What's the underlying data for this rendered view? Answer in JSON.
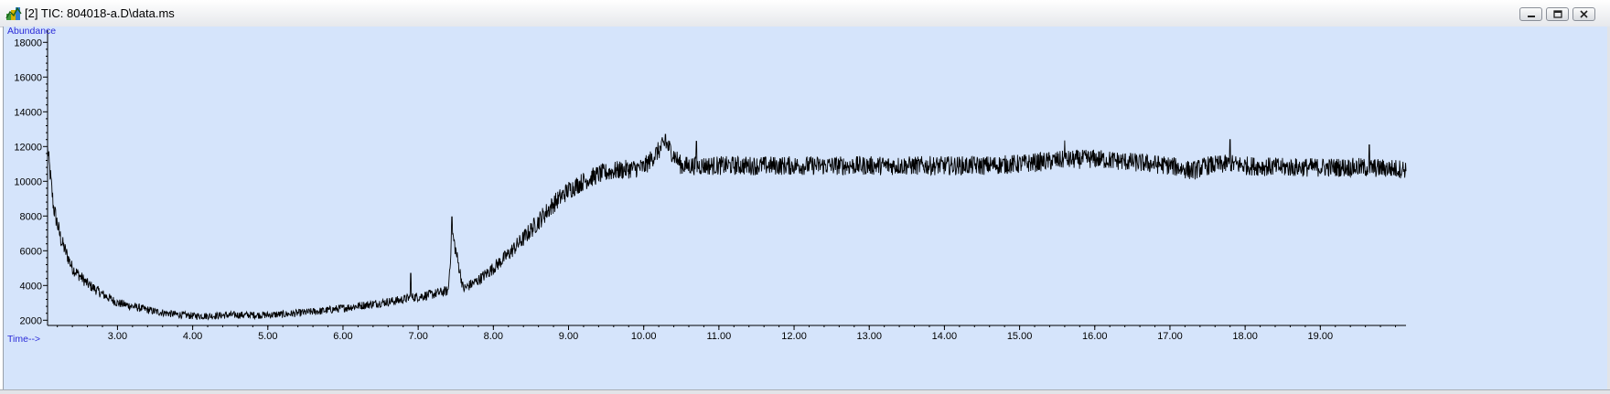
{
  "window": {
    "title": "[2] TIC: 804018-a.D\\data.ms",
    "icon": "chromatogram-app-icon",
    "buttons": [
      "minimize",
      "restore",
      "close"
    ]
  },
  "colors": {
    "plot_background": "#d5e4fb",
    "trace": "#000000",
    "axis_title_color": "#2a2ad8"
  },
  "chart_data": {
    "type": "line",
    "title": "",
    "ylabel": "Abundance",
    "xlabel": "Time-->",
    "xlim": [
      2.07,
      20.14
    ],
    "ylim": [
      1700,
      18700
    ],
    "x_ticks": [
      3.0,
      4.0,
      5.0,
      6.0,
      7.0,
      8.0,
      9.0,
      10.0,
      11.0,
      12.0,
      13.0,
      14.0,
      15.0,
      16.0,
      17.0,
      18.0,
      19.0
    ],
    "x_tick_labels": [
      "3.00",
      "4.00",
      "5.00",
      "6.00",
      "7.00",
      "8.00",
      "9.00",
      "10.00",
      "11.00",
      "12.00",
      "13.00",
      "14.00",
      "15.00",
      "16.00",
      "17.00",
      "18.00",
      "19.00"
    ],
    "y_ticks": [
      2000,
      4000,
      6000,
      8000,
      10000,
      12000,
      14000,
      16000,
      18000
    ],
    "y_tick_labels": [
      "2000",
      "4000",
      "6000",
      "8000",
      "10000",
      "12000",
      "14000",
      "16000",
      "18000"
    ],
    "grid": false,
    "series": [
      {
        "values_note_free": true,
        "x": [
          2.07,
          2.15,
          2.25,
          2.4,
          2.6,
          2.8,
          3.0,
          3.25,
          3.5,
          3.75,
          4.0,
          4.25,
          4.5,
          4.75,
          5.0,
          5.25,
          5.5,
          5.75,
          6.0,
          6.25,
          6.5,
          6.75,
          6.9,
          7.0,
          7.2,
          7.4,
          7.45,
          7.6,
          7.8,
          8.0,
          8.2,
          8.4,
          8.6,
          8.8,
          9.0,
          9.2,
          9.4,
          9.6,
          9.8,
          10.0,
          10.29,
          10.5,
          11.0,
          11.5,
          12.0,
          12.5,
          13.0,
          13.5,
          14.0,
          14.5,
          15.0,
          15.5,
          16.0,
          16.5,
          17.0,
          17.3,
          17.5,
          17.8,
          18.0,
          18.5,
          19.0,
          19.5,
          20.14
        ],
        "y": [
          11900,
          8500,
          6600,
          5000,
          4100,
          3500,
          3000,
          2750,
          2500,
          2350,
          2250,
          2250,
          2300,
          2300,
          2300,
          2350,
          2450,
          2550,
          2700,
          2850,
          3000,
          3150,
          3300,
          3350,
          3500,
          3700,
          7100,
          3800,
          4300,
          5000,
          5800,
          6700,
          7700,
          8700,
          9500,
          10000,
          10400,
          10600,
          10700,
          10800,
          12200,
          10900,
          10900,
          10900,
          10900,
          10900,
          10900,
          10900,
          10900,
          10900,
          11000,
          11200,
          11300,
          11100,
          10900,
          10600,
          10900,
          11000,
          10900,
          10800,
          10800,
          10800,
          10700
        ],
        "noise_amplitude": 550
      }
    ]
  }
}
